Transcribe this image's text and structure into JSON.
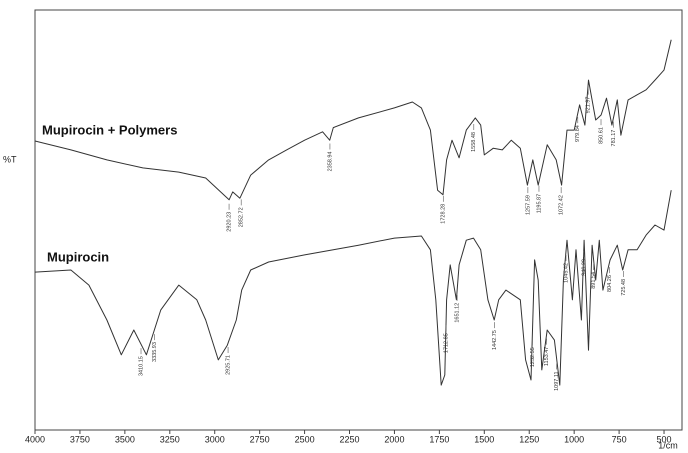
{
  "chart_data": {
    "type": "line",
    "x_label": "1/cm",
    "y_label": "%T",
    "xlim": [
      4000,
      400
    ],
    "ylim": [
      0,
      100
    ],
    "xticks": [
      4000,
      3750,
      3500,
      3250,
      3000,
      2750,
      2500,
      2250,
      2000,
      1750,
      1500,
      1250,
      1000,
      750,
      500
    ],
    "series": [
      {
        "name": "Mupirocin + Polymers",
        "color": "#333333",
        "x": [
          4000,
          3800,
          3600,
          3400,
          3200,
          3050,
          2950,
          2920,
          2900,
          2860,
          2800,
          2700,
          2600,
          2500,
          2400,
          2360,
          2340,
          2200,
          2000,
          1900,
          1850,
          1800,
          1760,
          1730,
          1710,
          1680,
          1640,
          1600,
          1550,
          1520,
          1500,
          1450,
          1400,
          1350,
          1300,
          1260,
          1230,
          1200,
          1150,
          1100,
          1070,
          1040,
          1000,
          970,
          940,
          920,
          880,
          850,
          820,
          790,
          760,
          740,
          700,
          650,
          600,
          550,
          500,
          460
        ],
        "values": [
          68.8,
          66.7,
          64.3,
          62.4,
          61.4,
          60.0,
          56.0,
          54.8,
          56.7,
          55.2,
          60.7,
          64.3,
          66.7,
          69.0,
          71.0,
          69.0,
          72.0,
          74.3,
          76.7,
          78.1,
          76.7,
          71.4,
          57.1,
          56.0,
          64.3,
          69.0,
          64.8,
          71.4,
          74.3,
          72.6,
          65.5,
          67.1,
          66.7,
          69.0,
          67.1,
          58.3,
          64.3,
          58.3,
          67.9,
          64.3,
          58.3,
          71.4,
          71.4,
          77.4,
          72.6,
          83.3,
          73.8,
          75.0,
          79.0,
          72.6,
          78.6,
          70.2,
          78.6,
          79.8,
          81.0,
          83.3,
          85.7,
          92.9
        ],
        "peaks": [
          2920.23,
          2852.72,
          2358.94,
          1728.28,
          1558.48,
          1257.59,
          1195.87,
          1072.42,
          979.84,
          921.97,
          850.61,
          781.17
        ]
      },
      {
        "name": "Mupirocin",
        "color": "#333333",
        "x": [
          4000,
          3800,
          3700,
          3600,
          3520,
          3450,
          3380,
          3300,
          3200,
          3100,
          3050,
          2980,
          2930,
          2880,
          2850,
          2800,
          2700,
          2500,
          2200,
          2000,
          1850,
          1800,
          1770,
          1740,
          1720,
          1710,
          1690,
          1655,
          1640,
          1600,
          1560,
          1520,
          1480,
          1445,
          1420,
          1380,
          1300,
          1270,
          1240,
          1220,
          1200,
          1180,
          1150,
          1110,
          1080,
          1060,
          1040,
          1010,
          990,
          960,
          945,
          920,
          900,
          880,
          860,
          840,
          800,
          760,
          730,
          700,
          650,
          600,
          550,
          500,
          460
        ],
        "values": [
          37.6,
          38.1,
          34.5,
          26.2,
          17.9,
          23.8,
          17.9,
          28.6,
          34.5,
          31.0,
          26.2,
          16.7,
          20.2,
          26.2,
          33.3,
          38.1,
          40.0,
          41.7,
          44.0,
          45.7,
          46.2,
          42.9,
          31.0,
          10.7,
          13.1,
          31.0,
          39.3,
          31.0,
          39.3,
          45.2,
          45.7,
          42.9,
          31.0,
          26.2,
          31.0,
          33.3,
          31.0,
          16.7,
          11.9,
          40.5,
          35.7,
          14.3,
          23.8,
          21.4,
          10.7,
          35.7,
          45.2,
          31.0,
          42.9,
          26.2,
          45.2,
          19.0,
          44.0,
          35.7,
          45.2,
          33.3,
          40.5,
          44.0,
          38.1,
          42.9,
          42.9,
          46.4,
          48.8,
          47.6,
          57.1
        ],
        "peaks": [
          3410.15,
          3335.93,
          2925.71,
          1712.85,
          1651.12,
          1442.75,
          1232.55,
          1153.47,
          1097.11,
          1045.42,
          946.29,
          891.54,
          804.26,
          725.48
        ]
      }
    ]
  }
}
